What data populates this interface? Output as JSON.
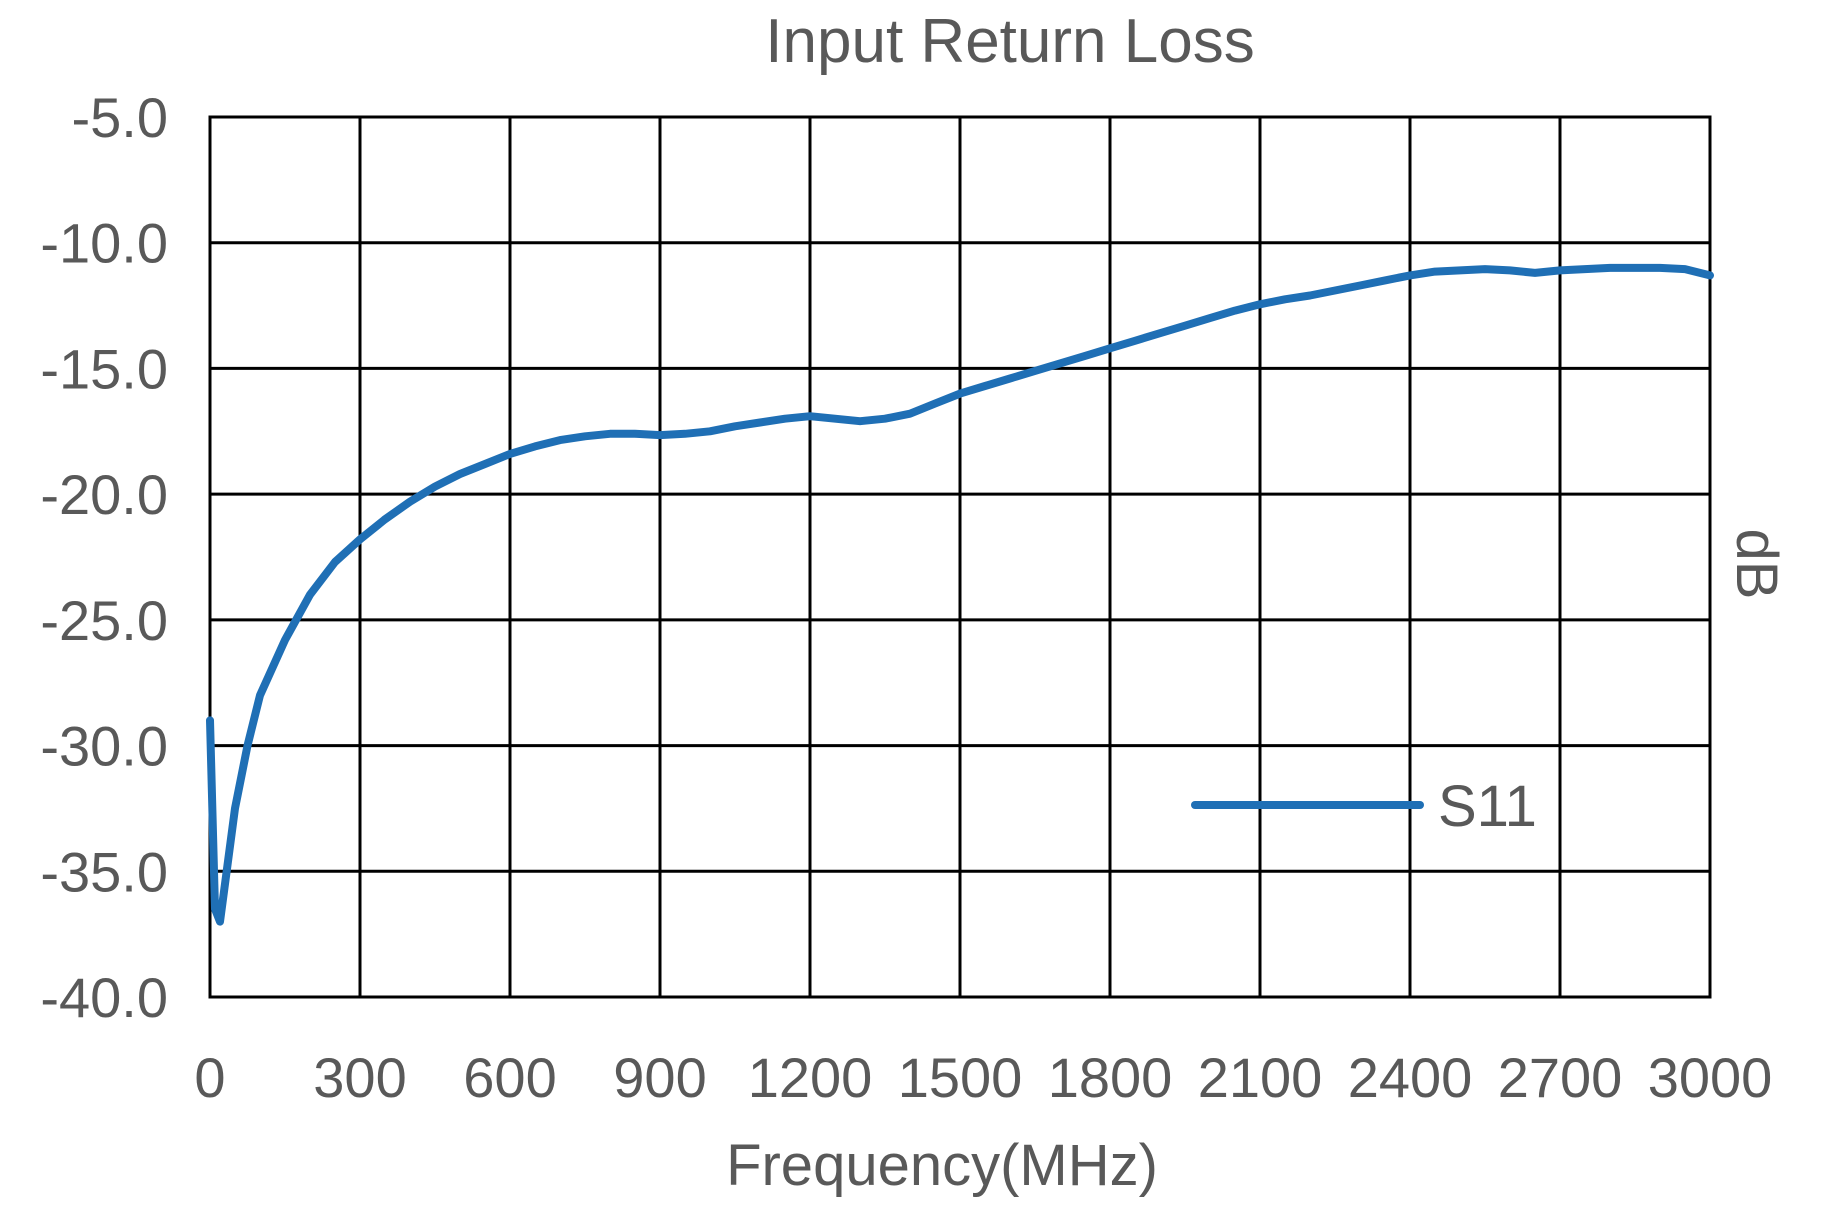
{
  "chart_data": {
    "type": "line",
    "title": "Input Return Loss",
    "xlabel": "Frequency(MHz)",
    "ylabel": "dB",
    "xlim": [
      0,
      3000
    ],
    "ylim": [
      -40,
      -5
    ],
    "x_ticks": [
      0,
      300,
      600,
      900,
      1200,
      1500,
      1800,
      2100,
      2400,
      2700,
      3000
    ],
    "x_tick_labels": [
      "0",
      "300",
      "600",
      "900",
      "1200",
      "1500",
      "1800",
      "2100",
      "2400",
      "2700",
      "3000"
    ],
    "y_ticks": [
      -5,
      -10,
      -15,
      -20,
      -25,
      -30,
      -35,
      -40
    ],
    "y_tick_labels": [
      "-5.0",
      "-10.0",
      "-15.0",
      "-20.0",
      "-25.0",
      "-30.0",
      "-35.0",
      "-40.0"
    ],
    "grid": true,
    "legend_position": "lower-right",
    "series": [
      {
        "name": "S11",
        "color": "#1f6fb5",
        "x": [
          0,
          10,
          20,
          30,
          50,
          75,
          100,
          150,
          200,
          250,
          300,
          350,
          400,
          450,
          500,
          550,
          600,
          650,
          700,
          750,
          800,
          850,
          900,
          950,
          1000,
          1050,
          1100,
          1150,
          1200,
          1250,
          1300,
          1350,
          1400,
          1450,
          1500,
          1550,
          1600,
          1650,
          1700,
          1750,
          1800,
          1850,
          1900,
          1950,
          2000,
          2050,
          2100,
          2150,
          2200,
          2250,
          2300,
          2350,
          2400,
          2450,
          2500,
          2550,
          2600,
          2650,
          2700,
          2750,
          2800,
          2850,
          2900,
          2950,
          3000
        ],
        "y": [
          -29.0,
          -36.5,
          -37.0,
          -35.5,
          -32.5,
          -30.0,
          -28.0,
          -25.8,
          -24.0,
          -22.7,
          -21.8,
          -21.0,
          -20.3,
          -19.7,
          -19.2,
          -18.8,
          -18.4,
          -18.1,
          -17.85,
          -17.7,
          -17.6,
          -17.6,
          -17.65,
          -17.6,
          -17.5,
          -17.3,
          -17.15,
          -17.0,
          -16.9,
          -17.0,
          -17.1,
          -17.0,
          -16.8,
          -16.4,
          -16.0,
          -15.7,
          -15.4,
          -15.1,
          -14.8,
          -14.5,
          -14.2,
          -13.9,
          -13.6,
          -13.3,
          -13.0,
          -12.7,
          -12.45,
          -12.25,
          -12.1,
          -11.9,
          -11.7,
          -11.5,
          -11.3,
          -11.15,
          -11.1,
          -11.05,
          -11.1,
          -11.2,
          -11.1,
          -11.05,
          -11.0,
          -11.0,
          -11.0,
          -11.05,
          -11.3
        ]
      }
    ]
  }
}
